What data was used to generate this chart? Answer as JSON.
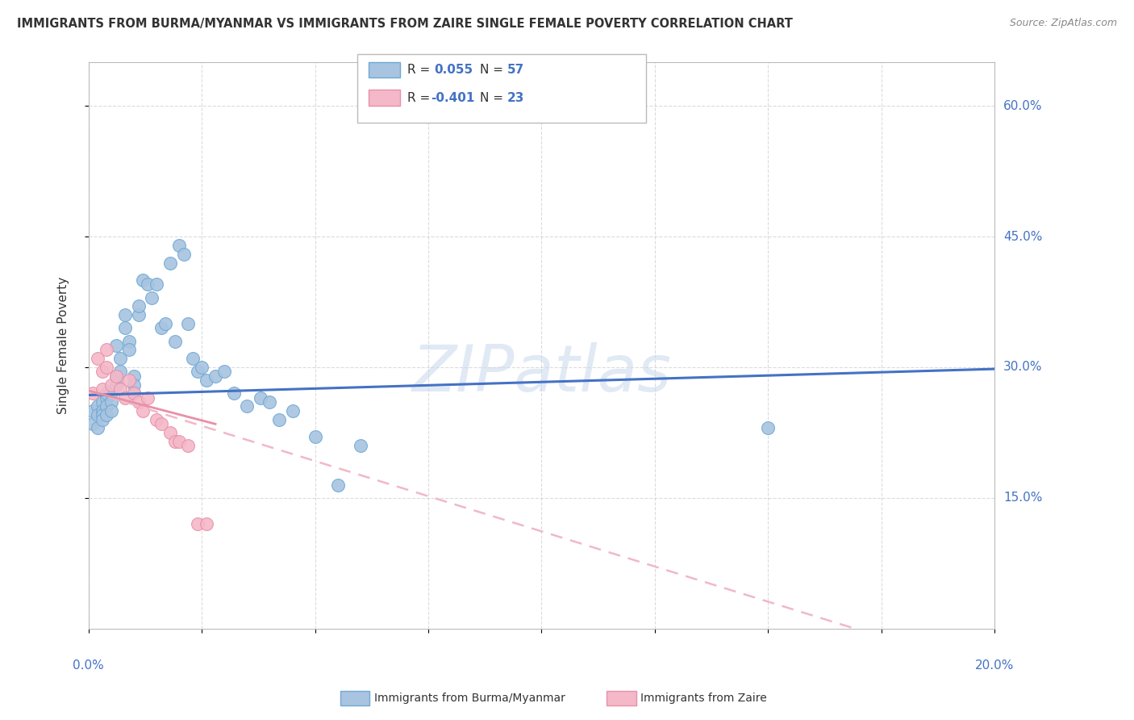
{
  "title": "IMMIGRANTS FROM BURMA/MYANMAR VS IMMIGRANTS FROM ZAIRE SINGLE FEMALE POVERTY CORRELATION CHART",
  "source": "Source: ZipAtlas.com",
  "ylabel": "Single Female Poverty",
  "watermark": "ZIPatlas",
  "legend_label_blue": "Immigrants from Burma/Myanmar",
  "legend_label_pink": "Immigrants from Zaire",
  "blue_color": "#a8c4e0",
  "blue_edge_color": "#6fa8d4",
  "pink_color": "#f4b8c8",
  "pink_edge_color": "#e890a8",
  "blue_line_color": "#4472c4",
  "pink_line_color": "#f0b8c8",
  "tick_color": "#4472c4",
  "grid_color": "#cccccc",
  "text_color": "#333333",
  "source_color": "#888888",
  "xmin": 0.0,
  "xmax": 0.2,
  "ymin": 0.0,
  "ymax": 0.65,
  "blue_r": 0.055,
  "blue_n": 57,
  "pink_r": -0.401,
  "pink_n": 23,
  "blue_x": [
    0.001,
    0.001,
    0.002,
    0.002,
    0.002,
    0.003,
    0.003,
    0.003,
    0.003,
    0.004,
    0.004,
    0.004,
    0.004,
    0.005,
    0.005,
    0.005,
    0.006,
    0.006,
    0.006,
    0.007,
    0.007,
    0.008,
    0.008,
    0.009,
    0.009,
    0.01,
    0.01,
    0.01,
    0.011,
    0.011,
    0.012,
    0.013,
    0.014,
    0.015,
    0.016,
    0.017,
    0.018,
    0.019,
    0.02,
    0.021,
    0.022,
    0.023,
    0.024,
    0.025,
    0.026,
    0.028,
    0.03,
    0.032,
    0.035,
    0.038,
    0.04,
    0.042,
    0.045,
    0.05,
    0.055,
    0.06,
    0.15
  ],
  "blue_y": [
    0.25,
    0.235,
    0.255,
    0.245,
    0.23,
    0.26,
    0.25,
    0.245,
    0.24,
    0.265,
    0.27,
    0.255,
    0.245,
    0.27,
    0.26,
    0.25,
    0.28,
    0.325,
    0.29,
    0.31,
    0.295,
    0.345,
    0.36,
    0.33,
    0.32,
    0.29,
    0.28,
    0.27,
    0.36,
    0.37,
    0.4,
    0.395,
    0.38,
    0.395,
    0.345,
    0.35,
    0.42,
    0.33,
    0.44,
    0.43,
    0.35,
    0.31,
    0.295,
    0.3,
    0.285,
    0.29,
    0.295,
    0.27,
    0.255,
    0.265,
    0.26,
    0.24,
    0.25,
    0.22,
    0.165,
    0.21,
    0.23
  ],
  "pink_x": [
    0.001,
    0.002,
    0.003,
    0.003,
    0.004,
    0.004,
    0.005,
    0.006,
    0.007,
    0.008,
    0.009,
    0.01,
    0.011,
    0.012,
    0.013,
    0.015,
    0.016,
    0.018,
    0.019,
    0.02,
    0.022,
    0.024,
    0.026
  ],
  "pink_y": [
    0.27,
    0.31,
    0.295,
    0.275,
    0.32,
    0.3,
    0.28,
    0.29,
    0.275,
    0.265,
    0.285,
    0.27,
    0.26,
    0.25,
    0.265,
    0.24,
    0.235,
    0.225,
    0.215,
    0.215,
    0.21,
    0.12,
    0.12
  ]
}
